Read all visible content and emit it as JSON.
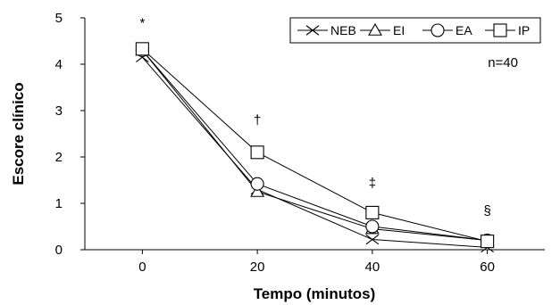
{
  "chart_data": {
    "type": "line",
    "xlabel": "Tempo (minutos)",
    "ylabel": "Escore clínico",
    "xlim": [
      -10,
      70
    ],
    "ylim": [
      0,
      5
    ],
    "x_ticks": [
      0,
      20,
      40,
      60
    ],
    "y_ticks": [
      0,
      1,
      2,
      3,
      4,
      5
    ],
    "x": [
      0,
      20,
      40,
      60
    ],
    "grid": false,
    "legend_position": "top-right",
    "series": [
      {
        "name": "NEB",
        "marker": "x",
        "values": [
          4.15,
          1.3,
          0.22,
          0.05
        ]
      },
      {
        "name": "EI",
        "marker": "triangle",
        "values": [
          4.3,
          1.25,
          0.45,
          0.2
        ]
      },
      {
        "name": "EA",
        "marker": "circle",
        "values": [
          4.3,
          1.42,
          0.5,
          0.2
        ]
      },
      {
        "name": "IP",
        "marker": "square",
        "values": [
          4.33,
          2.1,
          0.8,
          0.18
        ]
      }
    ],
    "annotations": [
      {
        "text": "*",
        "x": 0,
        "y": 4.8
      },
      {
        "text": "†",
        "x": 20,
        "y": 2.7
      },
      {
        "text": "‡",
        "x": 40,
        "y": 1.35
      },
      {
        "text": "§",
        "x": 60,
        "y": 0.75
      },
      {
        "text": "n=40",
        "position": "top-right"
      }
    ]
  }
}
